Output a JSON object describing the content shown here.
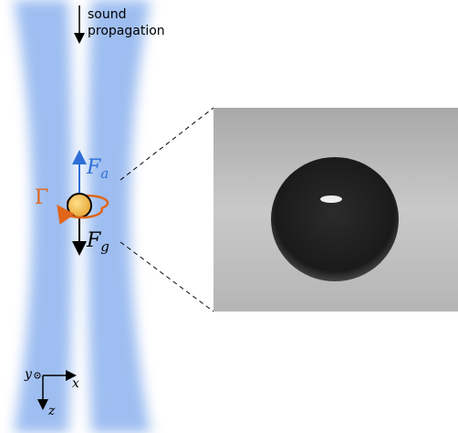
{
  "labels": {
    "sound_propagation": [
      "sound",
      "propagation"
    ],
    "lift_force": {
      "symbol": "F",
      "subscript": "a"
    },
    "gravity_force": {
      "symbol": "F",
      "subscript": "g"
    },
    "torque": "Γ",
    "axes": {
      "x": "x",
      "y": "y",
      "z": "z"
    }
  }
}
